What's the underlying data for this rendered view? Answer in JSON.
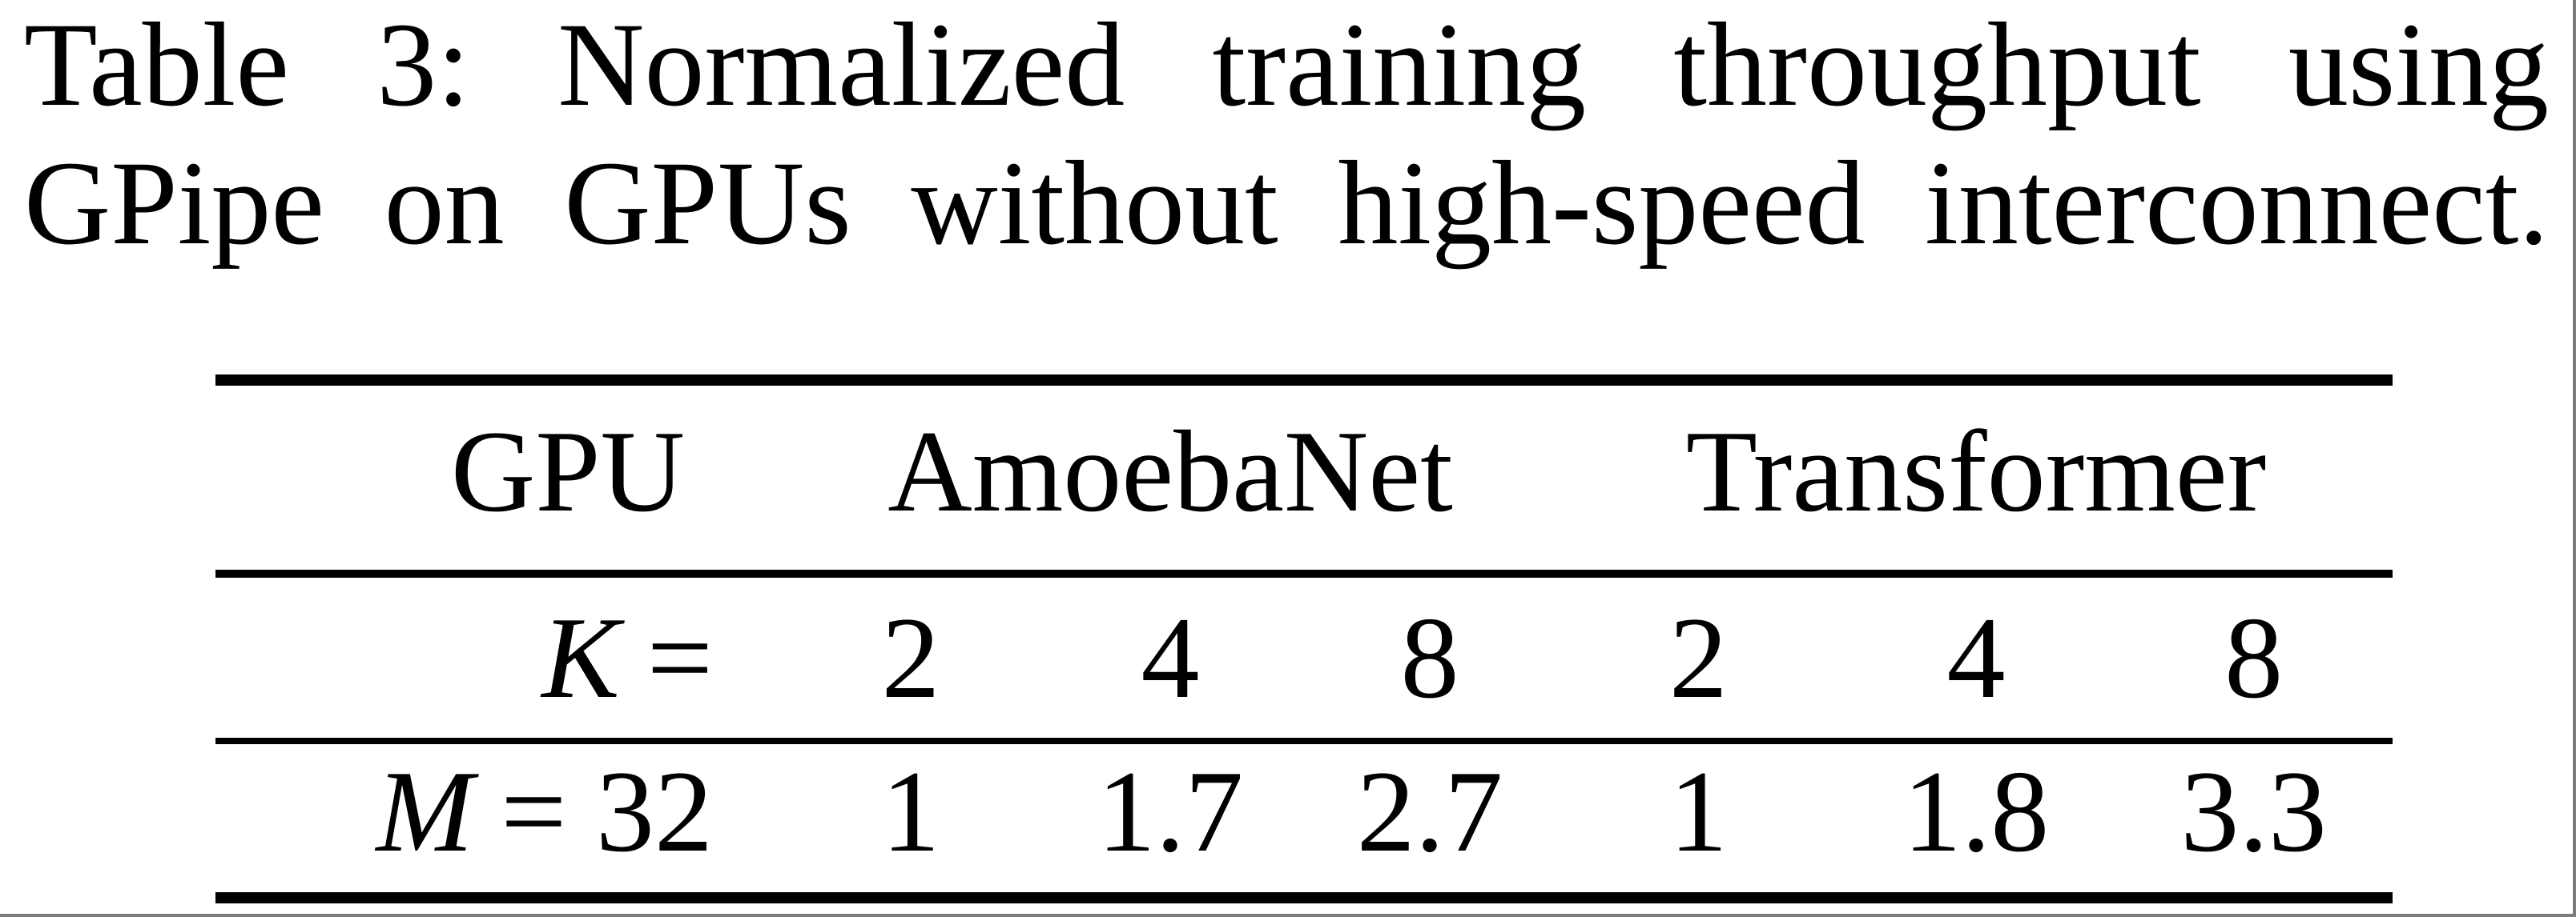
{
  "caption": {
    "full_text": "Table 3: Normalized training throughput using GPipe on GPUs without high-speed interconnect.",
    "line1_words": [
      "Table",
      "3:",
      "Normalized",
      "training",
      "throughput",
      "using"
    ],
    "line2_words": [
      "GPipe",
      "on",
      "GPUs",
      "without",
      "high-speed",
      "interconnect."
    ]
  },
  "table": {
    "header": {
      "gpu": "GPU",
      "group1": "AmoebaNet",
      "group2": "Transformer"
    },
    "rows": [
      {
        "var": "K",
        "eq": "=",
        "values": [
          "2",
          "4",
          "8",
          "2",
          "4",
          "8"
        ]
      },
      {
        "var": "M",
        "eq": "= 32",
        "values": [
          "1",
          "1.7",
          "2.7",
          "1",
          "1.8",
          "3.3"
        ]
      }
    ]
  },
  "chart_data": {
    "type": "table",
    "title": "Table 3: Normalized training throughput using GPipe on GPUs without high-speed interconnect.",
    "column_groups": [
      "GPU",
      "AmoebaNet",
      "AmoebaNet",
      "AmoebaNet",
      "Transformer",
      "Transformer",
      "Transformer"
    ],
    "columns": [
      "K =",
      "2",
      "4",
      "8",
      "2",
      "4",
      "8"
    ],
    "rows": [
      [
        "M = 32",
        1,
        1.7,
        2.7,
        1,
        1.8,
        3.3
      ]
    ]
  },
  "colors": {
    "text": "#000000",
    "background": "#ffffff",
    "rule": "#000000",
    "edge_border": "#7c7c7c"
  }
}
